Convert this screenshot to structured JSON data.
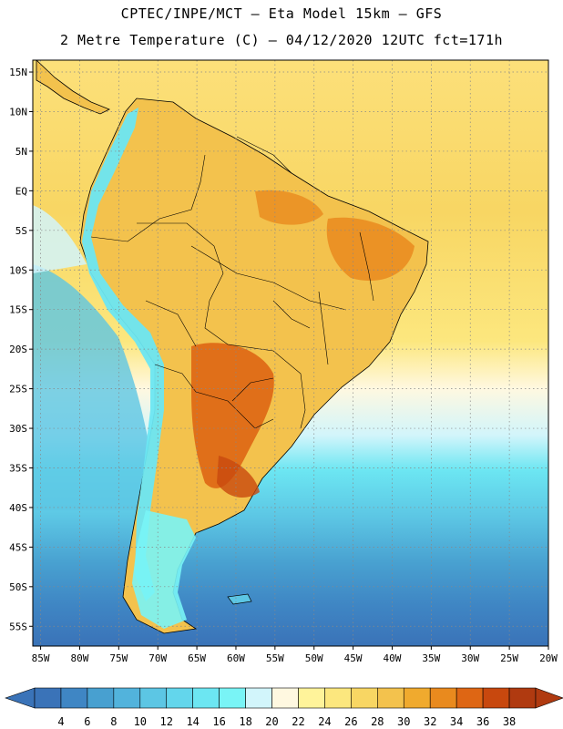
{
  "header": {
    "line1": "CPTEC/INPE/MCT –  Eta Model 15km – GFS",
    "line2": "2 Metre Temperature (C) – 04/12/2020 12UTC fct=171h"
  },
  "map": {
    "lat_ticks": [
      "15N",
      "10N",
      "5N",
      "EQ",
      "5S",
      "10S",
      "15S",
      "20S",
      "25S",
      "30S",
      "35S",
      "40S",
      "45S",
      "50S",
      "55S"
    ],
    "lon_ticks": [
      "85W",
      "80W",
      "75W",
      "70W",
      "65W",
      "60W",
      "55W",
      "50W",
      "45W",
      "40W",
      "35W",
      "30W",
      "25W",
      "20W"
    ],
    "lat_range": [
      -57.5,
      16.5
    ],
    "lon_range": [
      -86,
      -20
    ]
  },
  "colorbar": {
    "labels": [
      "4",
      "6",
      "8",
      "10",
      "12",
      "14",
      "16",
      "18",
      "20",
      "22",
      "24",
      "26",
      "28",
      "30",
      "32",
      "34",
      "36",
      "38"
    ],
    "colors": [
      "#3a73b8",
      "#3f86c4",
      "#48a0d0",
      "#52b3dc",
      "#5cc6e4",
      "#63d6ec",
      "#6ce6f2",
      "#79f4f6",
      "#d2f5fb",
      "#fff8e0",
      "#fff39a",
      "#fce77e",
      "#f8d663",
      "#f3c24d",
      "#f0aa2e",
      "#e98a1e",
      "#de6614",
      "#c8480e",
      "#b03a10"
    ],
    "low_color": "#3a73b8",
    "high_color": "#b03a10"
  }
}
